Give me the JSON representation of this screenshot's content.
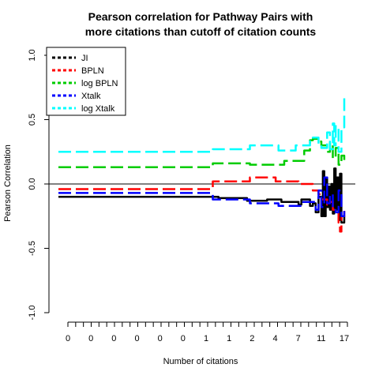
{
  "chart_data": {
    "type": "line",
    "title_lines": [
      "Pearson correlation for Pathway Pairs with",
      "more citations than cutoff of citation counts"
    ],
    "xlabel": "Number of citations",
    "ylabel": "Pearson Correlation",
    "ylim": [
      -1.0,
      1.0
    ],
    "y_ticks": [
      "-1.0",
      "-0.5",
      "0.0",
      "0.5",
      "1.0"
    ],
    "y_tick_values": [
      -1.0,
      -0.5,
      0.0,
      0.5,
      1.0
    ],
    "x_tick_labels": [
      "0",
      "0",
      "0",
      "0",
      "0",
      "0",
      "1",
      "1",
      "2",
      "4",
      "7",
      "11",
      "17"
    ],
    "x_range": [
      0,
      1
    ],
    "reference_line_y": 0,
    "legend_position": "top-left",
    "series": [
      {
        "name": "JI",
        "color": "#000000",
        "dash": "3",
        "x": [
          0.0,
          0.55,
          0.56,
          0.65,
          0.66,
          0.72,
          0.73,
          0.78,
          0.8,
          0.84,
          0.85,
          0.88,
          0.89,
          0.9,
          0.91,
          0.92,
          0.925,
          0.93,
          0.935,
          0.94,
          0.945,
          0.95,
          0.955,
          0.96,
          0.965,
          0.97,
          0.975,
          0.98,
          0.985,
          0.99,
          1.0
        ],
        "y": [
          -0.1,
          -0.1,
          -0.11,
          -0.11,
          -0.13,
          -0.13,
          -0.12,
          -0.14,
          -0.14,
          -0.16,
          -0.12,
          -0.17,
          -0.15,
          -0.22,
          -0.1,
          -0.25,
          0.1,
          -0.25,
          0.05,
          -0.18,
          -0.02,
          -0.2,
          0.0,
          -0.23,
          0.12,
          -0.2,
          0.05,
          -0.28,
          0.08,
          -0.3,
          -0.25
        ]
      },
      {
        "name": "BPLN",
        "color": "#ff0000",
        "dash": "3",
        "x": [
          0.0,
          0.53,
          0.54,
          0.66,
          0.67,
          0.75,
          0.76,
          0.83,
          0.84,
          0.88,
          0.89,
          0.91,
          0.92,
          0.94,
          0.95,
          0.96,
          0.97,
          0.98,
          0.985,
          0.99,
          1.0
        ],
        "y": [
          -0.04,
          -0.04,
          0.02,
          0.02,
          0.05,
          0.05,
          0.02,
          0.02,
          0.0,
          0.0,
          -0.05,
          -0.08,
          -0.12,
          -0.16,
          -0.14,
          -0.2,
          -0.22,
          -0.3,
          -0.37,
          -0.25,
          -0.2
        ]
      },
      {
        "name": "log BPLN",
        "color": "#00cc00",
        "dash": "3",
        "x": [
          0.0,
          0.53,
          0.54,
          0.66,
          0.67,
          0.78,
          0.79,
          0.85,
          0.86,
          0.88,
          0.89,
          0.91,
          0.92,
          0.94,
          0.95,
          0.96,
          0.97,
          0.98,
          0.99,
          1.0
        ],
        "y": [
          0.13,
          0.13,
          0.16,
          0.16,
          0.15,
          0.15,
          0.18,
          0.18,
          0.26,
          0.34,
          0.35,
          0.33,
          0.3,
          0.25,
          0.32,
          0.2,
          0.28,
          0.15,
          0.22,
          0.15
        ]
      },
      {
        "name": "Xtalk",
        "color": "#0000ff",
        "dash": "3",
        "x": [
          0.0,
          0.53,
          0.54,
          0.66,
          0.67,
          0.76,
          0.77,
          0.84,
          0.85,
          0.9,
          0.91,
          0.92,
          0.93,
          0.94,
          0.95,
          0.96,
          0.97,
          0.98,
          0.99,
          1.0
        ],
        "y": [
          -0.07,
          -0.07,
          -0.12,
          -0.12,
          -0.15,
          -0.15,
          -0.17,
          -0.17,
          -0.14,
          -0.2,
          -0.05,
          -0.18,
          0.05,
          -0.15,
          -0.08,
          -0.18,
          -0.22,
          -0.05,
          -0.25,
          -0.2
        ]
      },
      {
        "name": "log Xtalk",
        "color": "#00ffff",
        "dash": "3",
        "x": [
          0.0,
          0.53,
          0.54,
          0.66,
          0.67,
          0.76,
          0.77,
          0.82,
          0.83,
          0.88,
          0.89,
          0.91,
          0.92,
          0.94,
          0.95,
          0.96,
          0.965,
          0.97,
          0.98,
          0.99,
          1.0
        ],
        "y": [
          0.25,
          0.25,
          0.27,
          0.27,
          0.3,
          0.3,
          0.26,
          0.26,
          0.3,
          0.35,
          0.36,
          0.3,
          0.28,
          0.4,
          0.27,
          0.47,
          0.3,
          0.45,
          0.25,
          0.44,
          0.68
        ]
      }
    ]
  }
}
